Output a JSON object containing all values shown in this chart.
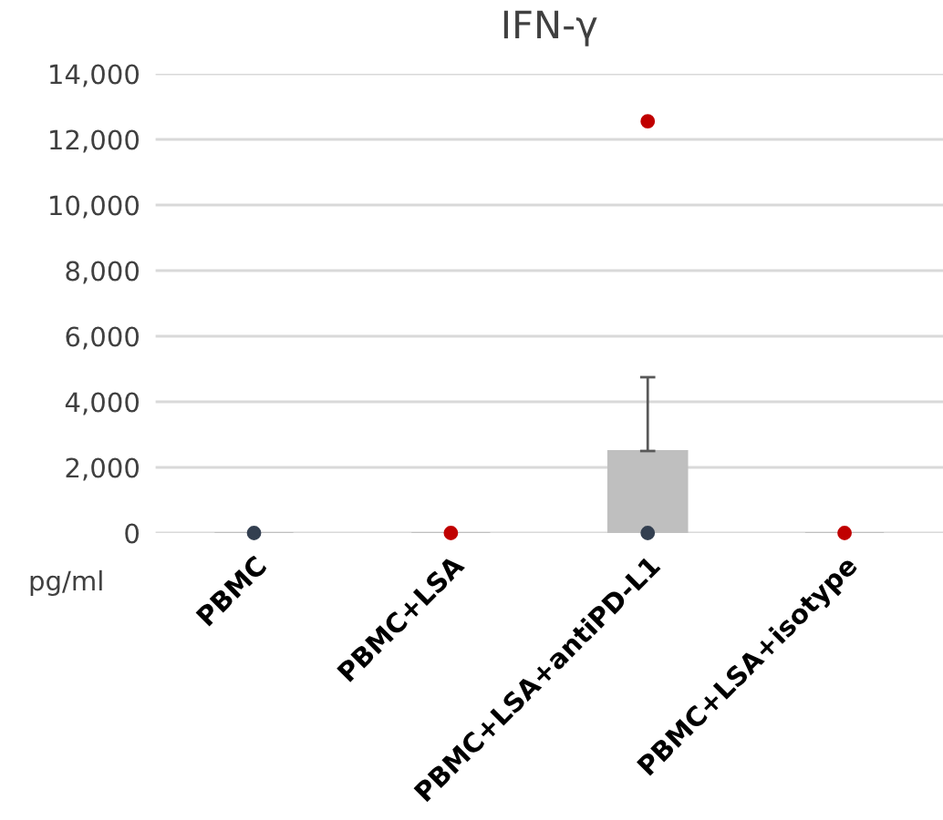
{
  "chart_data": {
    "type": "bar",
    "title": "IFN-γ",
    "ylabel": "pg/ml",
    "categories": [
      "PBMC",
      "PBMC+LSA",
      "PBMC+LSA+antiPD-L1",
      "PBMC+LSA+isotype"
    ],
    "series": [
      {
        "color": "#bfbfbf",
        "values": [
          0,
          0,
          2500,
          0
        ],
        "errors": [
          null,
          null,
          [
            2500,
            4750
          ],
          null
        ]
      },
      {
        "type": "scatter",
        "color": "#333f50",
        "values": [
          0,
          null,
          0,
          null
        ]
      },
      {
        "type": "scatter",
        "color": "#c00000",
        "values": [
          null,
          0,
          12550,
          0
        ]
      }
    ],
    "ylim": [
      0,
      14000
    ],
    "yticks": [
      {
        "value": 0,
        "label": "0"
      },
      {
        "value": 2000,
        "label": "2,000"
      },
      {
        "value": 4000,
        "label": "4,000"
      },
      {
        "value": 6000,
        "label": "6,000"
      },
      {
        "value": 8000,
        "label": "8,000"
      },
      {
        "value": 10000,
        "label": "10,000"
      },
      {
        "value": 12000,
        "label": "12,000"
      },
      {
        "value": 14000,
        "label": "14,000"
      }
    ],
    "grid": "y",
    "legend": false,
    "marker": "circle"
  }
}
